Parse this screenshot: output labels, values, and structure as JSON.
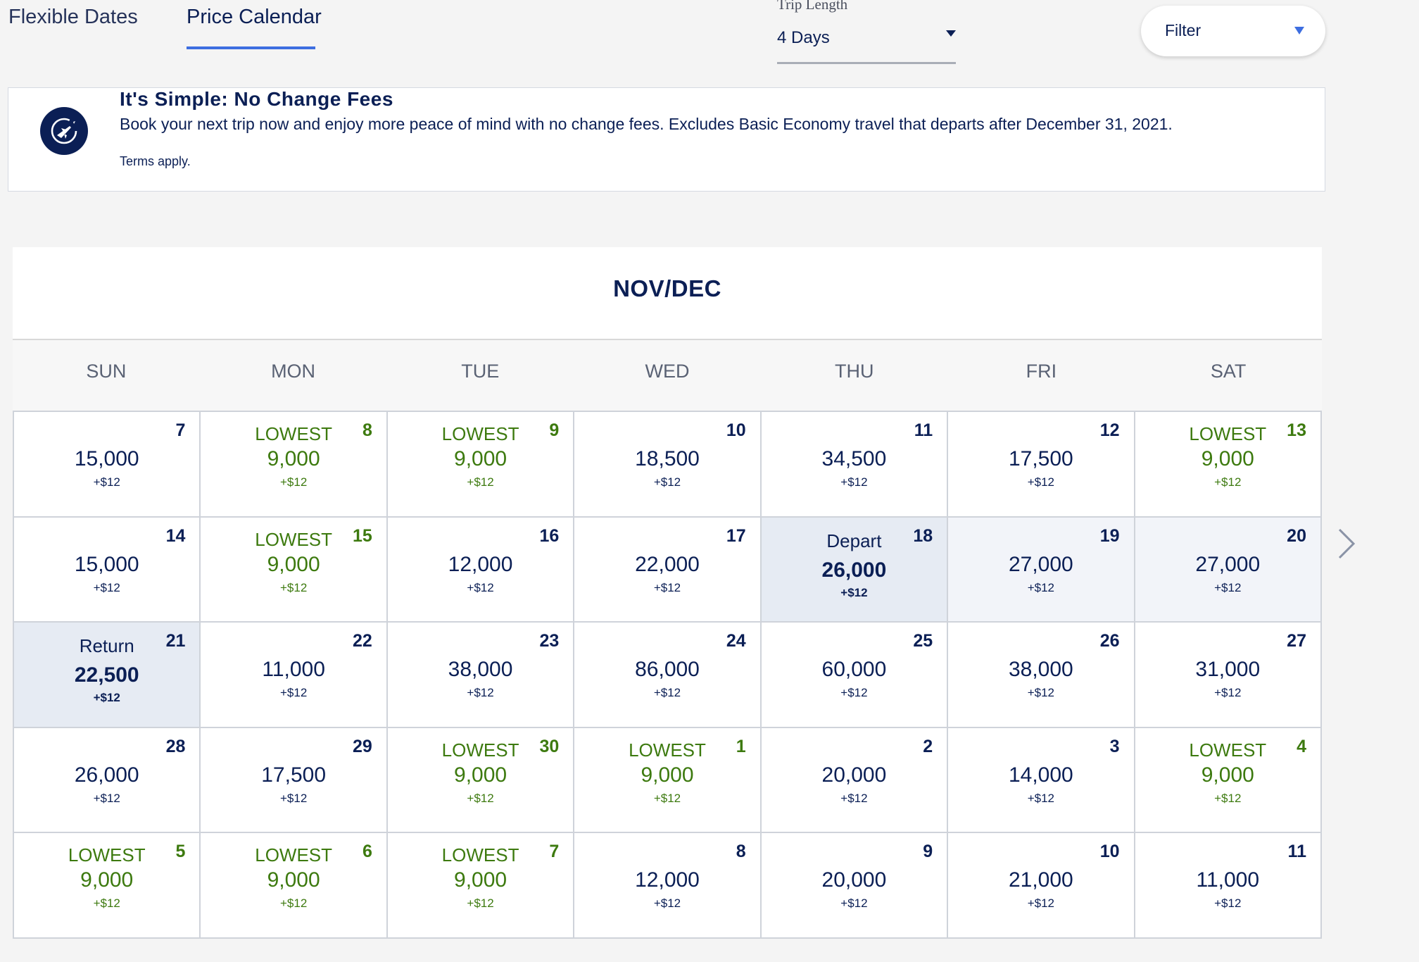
{
  "tabs": {
    "flexible": "Flexible Dates",
    "price": "Price Calendar"
  },
  "trip_length": {
    "label": "Trip Length",
    "value": "4 Days"
  },
  "filter": {
    "label": "Filter"
  },
  "banner": {
    "title": "It's Simple: No Change Fees",
    "body": "Book your next trip now and enjoy more peace of mind with no change fees. Excludes Basic Economy travel that departs after December 31, 2021.",
    "terms": "Terms apply."
  },
  "calendar": {
    "title": "NOV/DEC",
    "weekdays": [
      "SUN",
      "MON",
      "TUE",
      "WED",
      "THU",
      "FRI",
      "SAT"
    ],
    "fee": "+$12",
    "days": [
      {
        "day": "7",
        "price": "15,000"
      },
      {
        "day": "8",
        "price": "9,000",
        "tag": "LOWEST",
        "lowest": true
      },
      {
        "day": "9",
        "price": "9,000",
        "tag": "LOWEST",
        "lowest": true
      },
      {
        "day": "10",
        "price": "18,500"
      },
      {
        "day": "11",
        "price": "34,500"
      },
      {
        "day": "12",
        "price": "17,500"
      },
      {
        "day": "13",
        "price": "9,000",
        "tag": "LOWEST",
        "lowest": true
      },
      {
        "day": "14",
        "price": "15,000"
      },
      {
        "day": "15",
        "price": "9,000",
        "tag": "LOWEST",
        "lowest": true
      },
      {
        "day": "16",
        "price": "12,000"
      },
      {
        "day": "17",
        "price": "22,000"
      },
      {
        "day": "18",
        "price": "26,000",
        "tag": "Depart",
        "state": "selected"
      },
      {
        "day": "19",
        "price": "27,000",
        "state": "range"
      },
      {
        "day": "20",
        "price": "27,000",
        "state": "range"
      },
      {
        "day": "21",
        "price": "22,500",
        "tag": "Return",
        "state": "selected"
      },
      {
        "day": "22",
        "price": "11,000"
      },
      {
        "day": "23",
        "price": "38,000"
      },
      {
        "day": "24",
        "price": "86,000"
      },
      {
        "day": "25",
        "price": "60,000"
      },
      {
        "day": "26",
        "price": "38,000"
      },
      {
        "day": "27",
        "price": "31,000"
      },
      {
        "day": "28",
        "price": "26,000"
      },
      {
        "day": "29",
        "price": "17,500"
      },
      {
        "day": "30",
        "price": "9,000",
        "tag": "LOWEST",
        "lowest": true
      },
      {
        "day": "1",
        "price": "9,000",
        "tag": "LOWEST",
        "lowest": true
      },
      {
        "day": "2",
        "price": "20,000"
      },
      {
        "day": "3",
        "price": "14,000"
      },
      {
        "day": "4",
        "price": "9,000",
        "tag": "LOWEST",
        "lowest": true
      },
      {
        "day": "5",
        "price": "9,000",
        "tag": "LOWEST",
        "lowest": true
      },
      {
        "day": "6",
        "price": "9,000",
        "tag": "LOWEST",
        "lowest": true
      },
      {
        "day": "7",
        "price": "9,000",
        "tag": "LOWEST",
        "lowest": true
      },
      {
        "day": "8",
        "price": "12,000"
      },
      {
        "day": "9",
        "price": "20,000"
      },
      {
        "day": "10",
        "price": "21,000"
      },
      {
        "day": "11",
        "price": "11,000"
      }
    ]
  },
  "icons": {
    "banner": "airplane-circle-icon",
    "next": "chevron-right-icon"
  },
  "colors": {
    "navy": "#0b1f55",
    "lowest_green": "#3d7a0f",
    "accent_blue": "#3d6ee0",
    "selected_bg": "#e6ebf3"
  }
}
